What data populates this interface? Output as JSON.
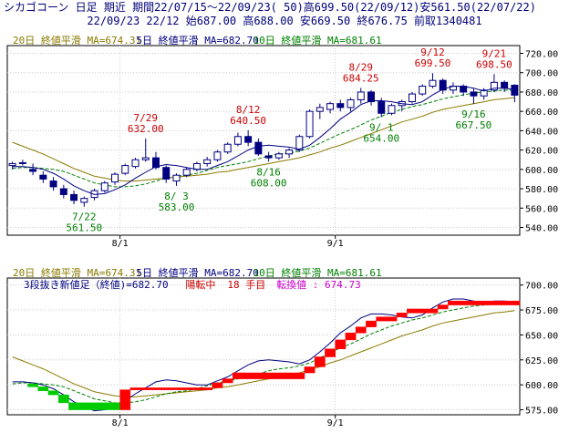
{
  "header": {
    "line1": "シカゴコーン 日足 期近 期間22/07/15～22/09/23( 50)高699.50(22/09/12)安561.50(22/07/22)",
    "line2": "22/09/23 22/12 始687.00 高688.00 安669.50 終676.75 前取1340481"
  },
  "colors": {
    "frame": "#000000",
    "grid": "#c8c8c8",
    "candle": "#000080",
    "ma20": "#8b7a00",
    "ma5": "#000080",
    "ma10": "#008000",
    "up_label": "#cc0000",
    "down_label": "#008000",
    "brick_up": "#ff0000",
    "brick_down": "#00cc00",
    "info_blue": "#000080",
    "info_red": "#cc0000",
    "info_magenta": "#cc00cc"
  },
  "chart_data": [
    {
      "type": "candlestick",
      "legend": [
        {
          "name": "20日 終値平滑 MA=674.31",
          "color": "#8b7a00"
        },
        {
          "name": "5日 終値平滑 MA=682.70",
          "color": "#000080"
        },
        {
          "name": "10日 終値平滑 MA=681.61",
          "color": "#008000"
        }
      ],
      "x_tick_labels": [
        "8/1",
        "9/1"
      ],
      "x_tick_index": [
        11,
        32
      ],
      "y_ticks": [
        540,
        560,
        580,
        600,
        620,
        640,
        660,
        680,
        700,
        720
      ],
      "y_tick_labels": [
        "540.00",
        "560.00",
        "580.00",
        "600.00",
        "620.00",
        "640.00",
        "660.00",
        "680.00",
        "700.00",
        "720.00"
      ],
      "ylim": [
        532,
        728
      ],
      "ohlc": [
        [
          604,
          608,
          600,
          606
        ],
        [
          606,
          610,
          604,
          607
        ],
        [
          600,
          606,
          594,
          598
        ],
        [
          594,
          598,
          586,
          590
        ],
        [
          588,
          592,
          578,
          582
        ],
        [
          580,
          584,
          570,
          574
        ],
        [
          574,
          578,
          564,
          568
        ],
        [
          566,
          572,
          561.5,
          570
        ],
        [
          571,
          580,
          568,
          578
        ],
        [
          578,
          588,
          576,
          586
        ],
        [
          587,
          597,
          584,
          595
        ],
        [
          596,
          606,
          594,
          604
        ],
        [
          603,
          612,
          601,
          610
        ],
        [
          610,
          632,
          608,
          612
        ],
        [
          612,
          618,
          600,
          602
        ],
        [
          602,
          604,
          586,
          590
        ],
        [
          588,
          596,
          583,
          594
        ],
        [
          594,
          602,
          592,
          600
        ],
        [
          600,
          608,
          598,
          606
        ],
        [
          606,
          613,
          603,
          610
        ],
        [
          610,
          620,
          608,
          618
        ],
        [
          618,
          628,
          616,
          626
        ],
        [
          626,
          638,
          624,
          634
        ],
        [
          634,
          640.5,
          624,
          628
        ],
        [
          628,
          632,
          614,
          616
        ],
        [
          614,
          618,
          608,
          612
        ],
        [
          612,
          618,
          610,
          616
        ],
        [
          616,
          622,
          612,
          620
        ],
        [
          620,
          636,
          618,
          634
        ],
        [
          634,
          662,
          632,
          660
        ],
        [
          660,
          668,
          652,
          664
        ],
        [
          662,
          670,
          658,
          668
        ],
        [
          668,
          672,
          660,
          664
        ],
        [
          664,
          674,
          660,
          672
        ],
        [
          672,
          684.25,
          668,
          680
        ],
        [
          680,
          682,
          666,
          670
        ],
        [
          670,
          674,
          654,
          658
        ],
        [
          658,
          668,
          656,
          666
        ],
        [
          666,
          672,
          660,
          670
        ],
        [
          670,
          680,
          668,
          678
        ],
        [
          678,
          688,
          676,
          686
        ],
        [
          686,
          699.5,
          684,
          692
        ],
        [
          692,
          694,
          678,
          682
        ],
        [
          682,
          690,
          678,
          686
        ],
        [
          686,
          688,
          676,
          680
        ],
        [
          680,
          684,
          667.5,
          676
        ],
        [
          676,
          684,
          672,
          682
        ],
        [
          682,
          698.5,
          680,
          690
        ],
        [
          690,
          692,
          680,
          684
        ],
        [
          687,
          688,
          669.5,
          676.75
        ]
      ],
      "ma5": [
        603,
        603,
        602,
        600,
        596,
        590,
        583,
        578,
        574,
        575,
        579,
        584,
        591,
        597,
        603,
        605,
        604,
        602,
        600,
        600,
        604,
        608,
        614,
        620,
        624,
        625,
        624,
        623,
        621,
        625,
        633,
        642,
        652,
        659,
        667,
        671,
        671,
        670,
        668,
        667,
        670,
        677,
        683,
        686,
        686,
        684,
        681,
        684,
        684,
        682.7
      ],
      "ma10": [
        601,
        602,
        602,
        601,
        600,
        598,
        594,
        590,
        586,
        584,
        582,
        582,
        583,
        585,
        588,
        591,
        593,
        594,
        596,
        599,
        602,
        604,
        606,
        608,
        611,
        614,
        616,
        617,
        619,
        622,
        627,
        632,
        637,
        641,
        646,
        651,
        655,
        659,
        662,
        665,
        667,
        670,
        673,
        675,
        677,
        679,
        680,
        681,
        682,
        681.61
      ],
      "ma20": [
        628,
        624,
        620,
        616,
        611,
        606,
        601,
        597,
        593,
        591,
        589,
        588,
        588,
        589,
        590,
        591,
        592,
        593,
        594,
        595,
        597,
        598,
        600,
        602,
        604,
        606,
        608,
        610,
        612,
        615,
        618,
        622,
        625,
        629,
        633,
        637,
        641,
        645,
        649,
        652,
        655,
        659,
        662,
        664,
        666,
        668,
        670,
        672,
        673,
        674.31
      ],
      "annotations": [
        {
          "i": 7,
          "date": "7/22",
          "value": "561.50",
          "kind": "low"
        },
        {
          "i": 13,
          "date": "7/29",
          "value": "632.00",
          "kind": "high"
        },
        {
          "i": 16,
          "date": "8/ 3",
          "value": "583.00",
          "kind": "low"
        },
        {
          "i": 23,
          "date": "8/12",
          "value": "640.50",
          "kind": "high"
        },
        {
          "i": 25,
          "date": "8/16",
          "value": "608.00",
          "kind": "low"
        },
        {
          "i": 34,
          "date": "8/29",
          "value": "684.25",
          "kind": "high"
        },
        {
          "i": 36,
          "date": "9/ 1",
          "value": "654.00",
          "kind": "low"
        },
        {
          "i": 41,
          "date": "9/12",
          "value": "699.50",
          "kind": "high"
        },
        {
          "i": 45,
          "date": "9/16",
          "value": "667.50",
          "kind": "low"
        },
        {
          "i": 47,
          "date": "9/21",
          "value": "698.50",
          "kind": "high"
        }
      ]
    },
    {
      "type": "three-line-break",
      "legend": [
        {
          "name": "20日 終値平滑 MA=674.31",
          "color": "#8b7a00"
        },
        {
          "name": "5日 終値平滑 MA=682.70",
          "color": "#000080"
        },
        {
          "name": "10日 終値平滑 MA=681.61",
          "color": "#008000"
        }
      ],
      "info": {
        "label": "3段抜き新値足（終値)=682.70",
        "trend": "陽転中",
        "count": "18 手目",
        "reversal": "転換値 : 674.73"
      },
      "x_tick_labels": [
        "8/1",
        "9/1"
      ],
      "x_tick_index": [
        11,
        32
      ],
      "y_ticks": [
        575,
        600,
        625,
        650,
        675,
        700
      ],
      "y_tick_labels": [
        "575.00",
        "600.00",
        "625.00",
        "650.00",
        "675.00",
        "700.00"
      ],
      "ylim": [
        570,
        707
      ],
      "bricks": [
        {
          "i0": 2,
          "i1": 3,
          "lo": 598,
          "hi": 601,
          "dir": "down"
        },
        {
          "i0": 3,
          "i1": 4,
          "lo": 594,
          "hi": 598,
          "dir": "down"
        },
        {
          "i0": 4,
          "i1": 5,
          "lo": 590,
          "hi": 594,
          "dir": "down"
        },
        {
          "i0": 5,
          "i1": 6,
          "lo": 582,
          "hi": 590,
          "dir": "down"
        },
        {
          "i0": 6,
          "i1": 11,
          "lo": 575,
          "hi": 582,
          "dir": "down"
        },
        {
          "i0": 11,
          "i1": 12,
          "lo": 575,
          "hi": 595,
          "dir": "up"
        },
        {
          "i0": 12,
          "i1": 20,
          "lo": 595,
          "hi": 597,
          "dir": "up"
        },
        {
          "i0": 20,
          "i1": 21,
          "lo": 597,
          "hi": 602,
          "dir": "up"
        },
        {
          "i0": 21,
          "i1": 22,
          "lo": 602,
          "hi": 606,
          "dir": "up"
        },
        {
          "i0": 22,
          "i1": 29,
          "lo": 606,
          "hi": 612,
          "dir": "up"
        },
        {
          "i0": 29,
          "i1": 30,
          "lo": 612,
          "hi": 618,
          "dir": "up"
        },
        {
          "i0": 30,
          "i1": 31,
          "lo": 618,
          "hi": 628,
          "dir": "up"
        },
        {
          "i0": 31,
          "i1": 32,
          "lo": 628,
          "hi": 636,
          "dir": "up"
        },
        {
          "i0": 32,
          "i1": 33,
          "lo": 636,
          "hi": 645,
          "dir": "up"
        },
        {
          "i0": 33,
          "i1": 34,
          "lo": 645,
          "hi": 652,
          "dir": "up"
        },
        {
          "i0": 34,
          "i1": 35,
          "lo": 652,
          "hi": 658,
          "dir": "up"
        },
        {
          "i0": 35,
          "i1": 36,
          "lo": 658,
          "hi": 664,
          "dir": "up"
        },
        {
          "i0": 36,
          "i1": 38,
          "lo": 664,
          "hi": 668,
          "dir": "up"
        },
        {
          "i0": 38,
          "i1": 39,
          "lo": 668,
          "hi": 672,
          "dir": "up"
        },
        {
          "i0": 39,
          "i1": 42,
          "lo": 672,
          "hi": 676,
          "dir": "up"
        },
        {
          "i0": 42,
          "i1": 43,
          "lo": 676,
          "hi": 680,
          "dir": "up"
        },
        {
          "i0": 43,
          "i1": 50,
          "lo": 680,
          "hi": 684,
          "dir": "up"
        }
      ],
      "ma5": [
        603,
        603,
        602,
        600,
        596,
        590,
        583,
        578,
        574,
        575,
        579,
        584,
        591,
        597,
        603,
        605,
        604,
        602,
        600,
        600,
        604,
        608,
        614,
        620,
        624,
        625,
        624,
        623,
        621,
        625,
        633,
        642,
        652,
        659,
        667,
        671,
        671,
        670,
        668,
        667,
        670,
        677,
        683,
        686,
        686,
        684,
        681,
        684,
        684,
        682.7
      ],
      "ma10": [
        601,
        602,
        602,
        601,
        600,
        598,
        594,
        590,
        586,
        584,
        582,
        582,
        583,
        585,
        588,
        591,
        593,
        594,
        596,
        599,
        602,
        604,
        606,
        608,
        611,
        614,
        616,
        617,
        619,
        622,
        627,
        632,
        637,
        641,
        646,
        651,
        655,
        659,
        662,
        665,
        667,
        670,
        673,
        675,
        677,
        679,
        680,
        681,
        682,
        681.61
      ],
      "ma20": [
        628,
        624,
        620,
        616,
        611,
        606,
        601,
        597,
        593,
        591,
        589,
        588,
        588,
        589,
        590,
        591,
        592,
        593,
        594,
        595,
        597,
        598,
        600,
        602,
        604,
        606,
        608,
        610,
        612,
        615,
        618,
        622,
        625,
        629,
        633,
        637,
        641,
        645,
        649,
        652,
        655,
        659,
        662,
        664,
        666,
        668,
        670,
        672,
        673,
        674.31
      ]
    }
  ]
}
